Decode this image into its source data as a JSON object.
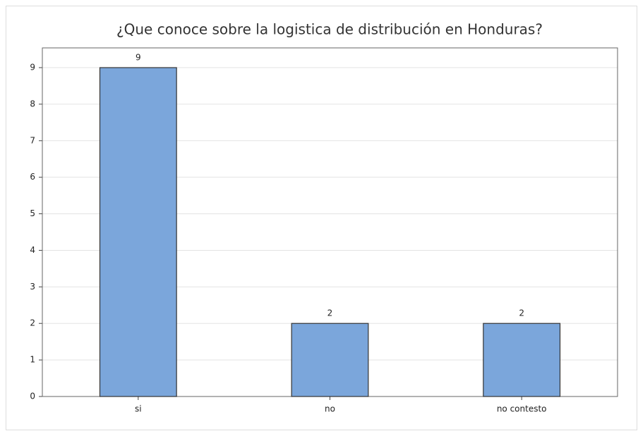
{
  "chart_data": {
    "type": "bar",
    "title": "¿Que conoce sobre la logistica de distribución en Honduras?",
    "categories": [
      "si",
      "no",
      "no contesto"
    ],
    "values": [
      9,
      2,
      2
    ],
    "color": "#7ba6db",
    "ylim": [
      0,
      9.54
    ],
    "yticks": [
      0,
      1,
      2,
      3,
      4,
      5,
      6,
      7,
      8,
      9
    ],
    "grid": true
  }
}
